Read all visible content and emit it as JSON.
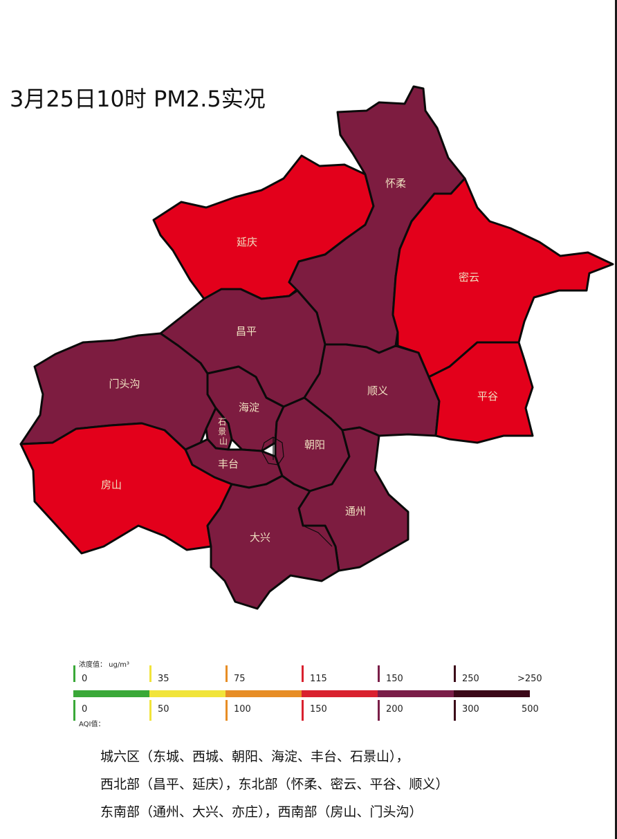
{
  "title": "3月25日10时 PM2.5实况",
  "colors": {
    "red": "#e3001b",
    "purple": "#7d1c40",
    "good": "#3aa838",
    "moderate": "#f1e43a",
    "light": "#e78d25",
    "medium": "#d9212e",
    "heavy": "#7a1e48",
    "severe": "#3b0818"
  },
  "regions": [
    {
      "name": "延庆",
      "level": "red"
    },
    {
      "name": "怀柔",
      "level": "purple"
    },
    {
      "name": "密云",
      "level": "red"
    },
    {
      "name": "昌平",
      "level": "purple"
    },
    {
      "name": "门头沟",
      "level": "purple"
    },
    {
      "name": "海淀",
      "level": "purple"
    },
    {
      "name": "石景山",
      "level": "purple"
    },
    {
      "name": "顺义",
      "level": "purple"
    },
    {
      "name": "平谷",
      "level": "red"
    },
    {
      "name": "朝阳",
      "level": "purple"
    },
    {
      "name": "丰台",
      "level": "purple"
    },
    {
      "name": "房山",
      "level": "red"
    },
    {
      "name": "通州",
      "level": "purple"
    },
    {
      "name": "大兴",
      "level": "purple"
    }
  ],
  "legend": {
    "concentration_caption": "浓度值： ug/m³",
    "aqi_caption": "AQI值：",
    "concentration_values": [
      "0",
      "35",
      "75",
      "115",
      "150",
      "250",
      ">250"
    ],
    "aqi_values": [
      "0",
      "50",
      "100",
      "150",
      "200",
      "300",
      "500"
    ]
  },
  "notes": [
    "城六区（东城、西城、朝阳、海淀、丰台、石景山），",
    "西北部（昌平、延庆），东北部（怀柔、密云、平谷、顺义）",
    "东南部（通州、大兴、亦庄），西南部（房山、门头沟）"
  ]
}
